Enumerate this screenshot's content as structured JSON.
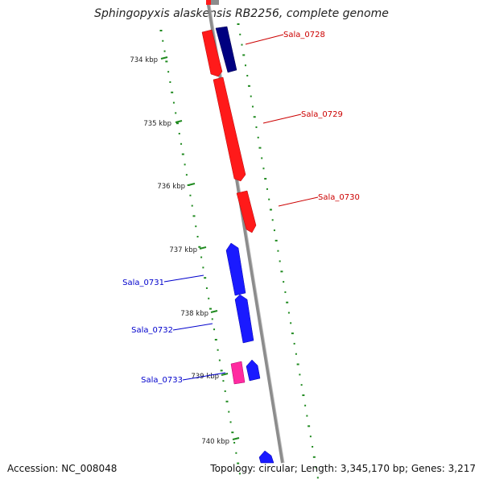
{
  "title": "Sphingopyxis alaskensis RB2256, complete genome",
  "footer": {
    "accession": "Accession: NC_008048",
    "summary": "Topology: circular; Length: 3,345,170 bp; Genes: 3,217"
  },
  "colors": {
    "forward_gene": "#ff1a1a",
    "reverse_gene": "#1a1aff",
    "reverse_gene_dark": "#000080",
    "pink_gene": "#ff2aa0",
    "backbone": "#8c8c8c",
    "gc_ticks": "#1f8a1f",
    "forward_label": "#cc0000",
    "reverse_label": "#0000cc"
  },
  "tick_labels": [
    "734 kbp",
    "735 kbp",
    "736 kbp",
    "737 kbp",
    "738 kbp",
    "739 kbp",
    "740 kbp"
  ],
  "genes": {
    "forward": [
      {
        "name": "Sala_0728"
      },
      {
        "name": "Sala_0729"
      },
      {
        "name": "Sala_0730"
      }
    ],
    "reverse": [
      {
        "name": "Sala_0731"
      },
      {
        "name": "Sala_0732"
      },
      {
        "name": "Sala_0733"
      }
    ]
  }
}
